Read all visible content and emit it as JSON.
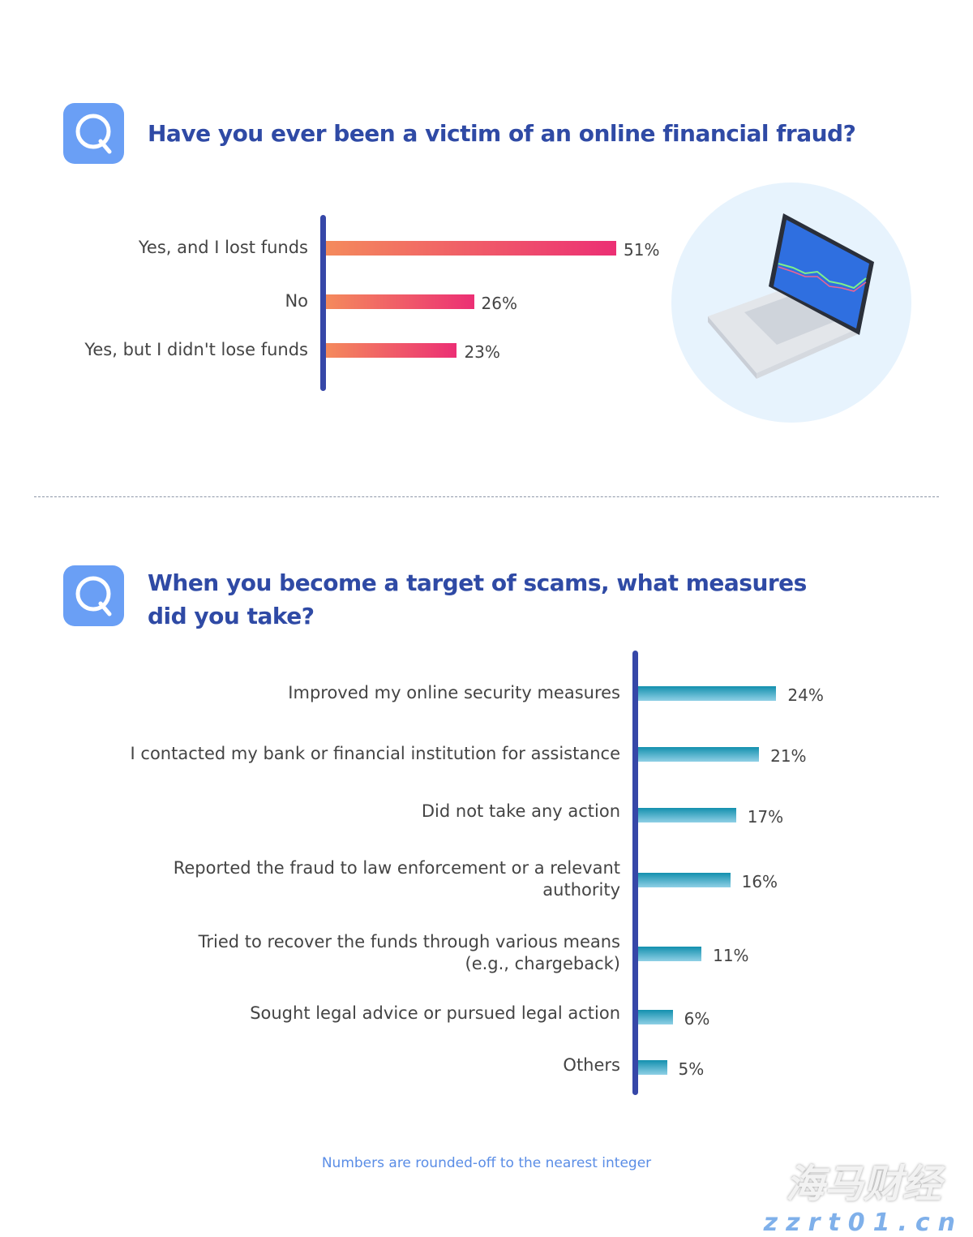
{
  "chart_data": [
    {
      "type": "bar",
      "orientation": "horizontal",
      "title": "Have you ever been a victim of an online financial fraud?",
      "categories": [
        "Yes, and I lost funds",
        "No",
        "Yes, but I didn't lose funds"
      ],
      "values": [
        51,
        26,
        23
      ],
      "value_labels": [
        "51%",
        "26%",
        "23%"
      ],
      "unit": "%",
      "colors": [
        "#f48a5c",
        "#ec2f74"
      ]
    },
    {
      "type": "bar",
      "orientation": "horizontal",
      "title": "When you become a target of scams, what measures did you take?",
      "categories": [
        "Improved my online security measures",
        "I contacted my bank or financial institution for assistance",
        "Did not take any action",
        "Reported the fraud to law enforcement or a relevant authority",
        "Tried to recover the funds through various means (e.g., chargeback)",
        "Sought legal advice or pursued legal action",
        "Others"
      ],
      "values": [
        24,
        21,
        17,
        16,
        11,
        6,
        5
      ],
      "value_labels": [
        "24%",
        "21%",
        "17%",
        "16%",
        "11%",
        "6%",
        "5%"
      ],
      "unit": "%",
      "colors": [
        "#1390ae",
        "#8fd0e6"
      ]
    }
  ],
  "footnote": "Numbers are rounded-off to the nearest integer",
  "watermark": {
    "text": "海马财经",
    "url": "zzrt01.cn"
  },
  "colors": {
    "accent": "#2f4aa5",
    "axis": "#3647a8",
    "icon": "#6a9ff5"
  }
}
